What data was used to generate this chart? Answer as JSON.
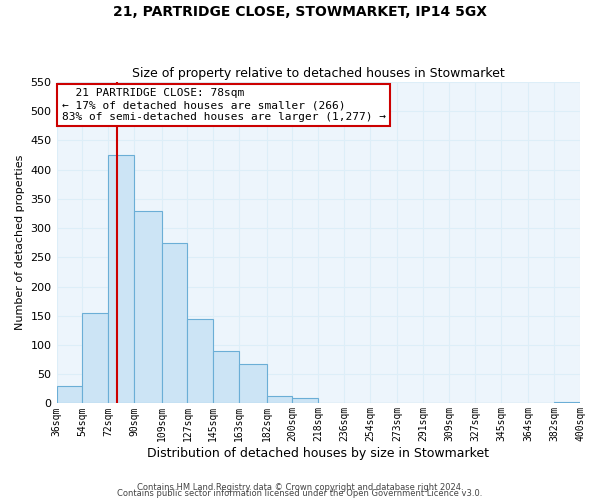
{
  "title": "21, PARTRIDGE CLOSE, STOWMARKET, IP14 5GX",
  "subtitle": "Size of property relative to detached houses in Stowmarket",
  "xlabel": "Distribution of detached houses by size in Stowmarket",
  "ylabel": "Number of detached properties",
  "bar_edges": [
    36,
    54,
    72,
    90,
    109,
    127,
    145,
    163,
    182,
    200,
    218,
    236,
    254,
    273,
    291,
    309,
    327,
    345,
    364,
    382,
    400
  ],
  "bar_heights": [
    30,
    155,
    425,
    330,
    275,
    145,
    90,
    67,
    13,
    10,
    0,
    0,
    0,
    0,
    0,
    0,
    0,
    0,
    0,
    2
  ],
  "bar_color": "#cce4f5",
  "bar_edge_color": "#6baed6",
  "vline_x": 78,
  "vline_color": "#cc0000",
  "ylim": [
    0,
    550
  ],
  "annotation_title": "21 PARTRIDGE CLOSE: 78sqm",
  "annotation_line1": "← 17% of detached houses are smaller (266)",
  "annotation_line2": "83% of semi-detached houses are larger (1,277) →",
  "footer1": "Contains HM Land Registry data © Crown copyright and database right 2024.",
  "footer2": "Contains public sector information licensed under the Open Government Licence v3.0.",
  "tick_labels": [
    "36sqm",
    "54sqm",
    "72sqm",
    "90sqm",
    "109sqm",
    "127sqm",
    "145sqm",
    "163sqm",
    "182sqm",
    "200sqm",
    "218sqm",
    "236sqm",
    "254sqm",
    "273sqm",
    "291sqm",
    "309sqm",
    "327sqm",
    "345sqm",
    "364sqm",
    "382sqm",
    "400sqm"
  ],
  "grid_color": "#ddeef8",
  "background_color": "#ffffff",
  "axes_bg_color": "#edf5fc"
}
